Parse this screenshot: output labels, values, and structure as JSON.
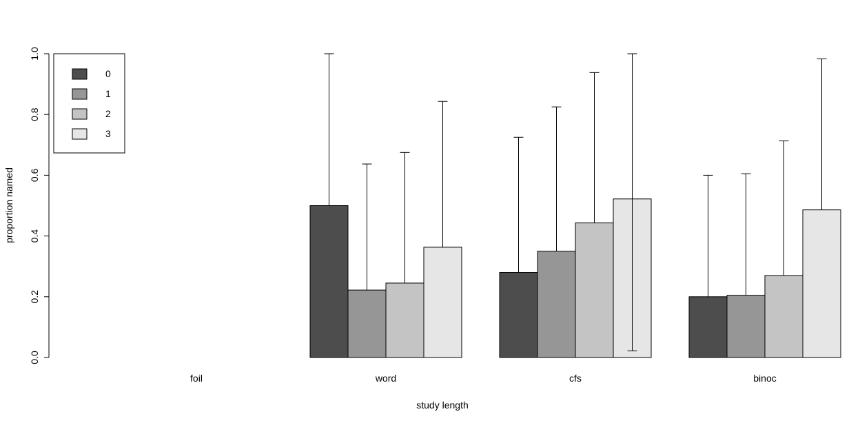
{
  "chart_data": {
    "type": "bar",
    "title": "",
    "xlabel": "study length",
    "ylabel": "proportion named",
    "ylim": [
      0,
      1
    ],
    "yticks": [
      "0.0",
      "0.2",
      "0.4",
      "0.6",
      "0.8",
      "1.0"
    ],
    "categories": [
      "foil",
      "word",
      "cfs",
      "binoc"
    ],
    "legend_position": "top-left",
    "grid": false,
    "series": [
      {
        "name": "0",
        "color": "#4d4d4d",
        "values": [
          null,
          0.5,
          0.28,
          0.2
        ],
        "error_upper": [
          null,
          1.0,
          0.725,
          0.6
        ],
        "error_lower": [
          null,
          0.5,
          0.28,
          0.2
        ]
      },
      {
        "name": "1",
        "color": "#969696",
        "values": [
          null,
          0.222,
          0.35,
          0.205
        ],
        "error_upper": [
          null,
          0.637,
          0.825,
          0.605
        ],
        "error_lower": [
          null,
          0.222,
          0.35,
          0.205
        ]
      },
      {
        "name": "2",
        "color": "#c4c4c4",
        "values": [
          null,
          0.245,
          0.443,
          0.27
        ],
        "error_upper": [
          null,
          0.675,
          0.938,
          0.713
        ],
        "error_lower": [
          null,
          0.245,
          0.443,
          0.27
        ]
      },
      {
        "name": "3",
        "color": "#e6e6e6",
        "values": [
          null,
          0.363,
          0.522,
          0.486
        ],
        "error_upper": [
          null,
          0.843,
          1.0,
          0.983
        ],
        "error_lower": [
          null,
          0.363,
          0.022,
          0.486
        ]
      }
    ]
  }
}
